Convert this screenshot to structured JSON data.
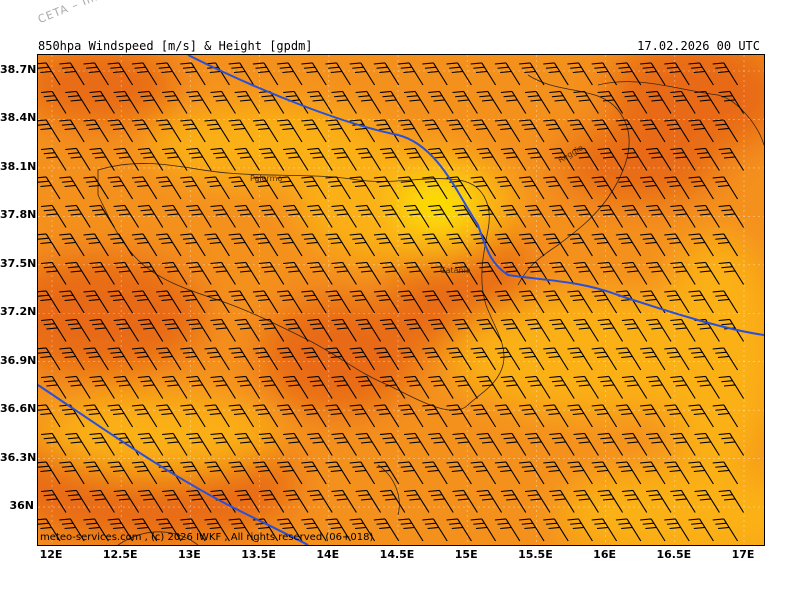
{
  "watermark": "CETA – Im",
  "header": {
    "title": "850hpa Windspeed [m/s] & Height [gpdm]",
    "datetime": "17.02.2026 00 UTC"
  },
  "footer": "meteo-services.com , (c) 2026 IWKF , All rights reserved (06+018)",
  "map": {
    "lat_labels": [
      "38.7N",
      "38.4N",
      "38.1N",
      "37.8N",
      "37.5N",
      "37.2N",
      "36.9N",
      "36.6N",
      "36.3N",
      "36N"
    ],
    "lon_labels": [
      "12E",
      "12.5E",
      "13E",
      "13.5E",
      "14E",
      "14.5E",
      "15E",
      "15.5E",
      "16E",
      "16.5E",
      "17E"
    ],
    "cities": [
      "Palermo",
      "Catania",
      "Reggio"
    ],
    "colors": {
      "wind_strong": "#e86a14",
      "wind_medium": "#f4901a",
      "wind_weak": "#fbb012",
      "wind_weakest": "#fde400",
      "contour": "#2a50d8",
      "barb": "#000000"
    },
    "barb_icon": "wind-barb-icon"
  }
}
